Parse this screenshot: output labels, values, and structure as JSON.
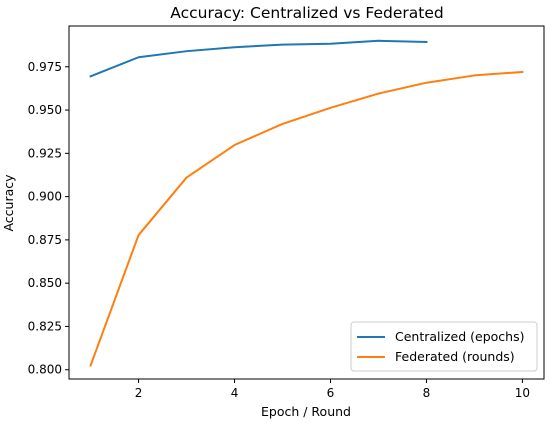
{
  "chart_data": {
    "type": "line",
    "title": "Accuracy: Centralized vs Federated",
    "xlabel": "Epoch / Round",
    "ylabel": "Accuracy",
    "xlim": [
      0.55,
      10.45
    ],
    "ylim": [
      0.79465,
      0.99855
    ],
    "xticks": [
      2,
      4,
      6,
      8,
      10
    ],
    "xtick_labels": [
      "2",
      "4",
      "6",
      "8",
      "10"
    ],
    "yticks": [
      0.8,
      0.825,
      0.85,
      0.875,
      0.9,
      0.925,
      0.95,
      0.975
    ],
    "ytick_labels": [
      "0.800",
      "0.825",
      "0.850",
      "0.875",
      "0.900",
      "0.925",
      "0.950",
      "0.975"
    ],
    "grid": false,
    "legend_position": "lower-right",
    "series": [
      {
        "name": "Centralized (epochs)",
        "color": "#1f77b4",
        "x": [
          1,
          2,
          3,
          4,
          5,
          6,
          7,
          8
        ],
        "values": [
          0.9695,
          0.9805,
          0.984,
          0.9863,
          0.9878,
          0.9883,
          0.99,
          0.9893
        ]
      },
      {
        "name": "Federated (rounds)",
        "color": "#ff7f0e",
        "x": [
          1,
          2,
          3,
          4,
          5,
          6,
          7,
          8,
          9,
          10
        ],
        "values": [
          0.8025,
          0.8778,
          0.911,
          0.9298,
          0.942,
          0.9513,
          0.9595,
          0.9658,
          0.97,
          0.972
        ]
      }
    ]
  }
}
